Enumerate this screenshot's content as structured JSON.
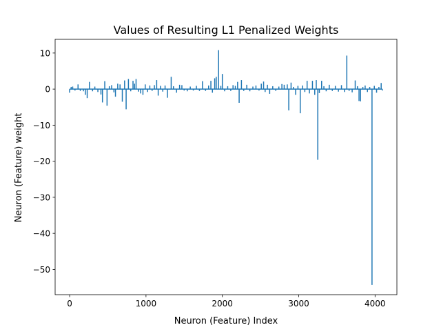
{
  "chart_data": {
    "type": "line",
    "title": "Values of Resulting L1 Penalized Weights",
    "xlabel": "Neuron (Feature) Index",
    "ylabel": "Neuron (Feature) weight",
    "xlim": [
      -190,
      4286
    ],
    "ylim": [
      -57.0,
      13.8
    ],
    "xticks": [
      0,
      1000,
      2000,
      3000,
      4000
    ],
    "xtick_labels": [
      "0",
      "1000",
      "2000",
      "3000",
      "4000"
    ],
    "yticks": [
      10,
      0,
      -10,
      -20,
      -30,
      -40,
      -50
    ],
    "ytick_labels": [
      "10",
      "0",
      "−10",
      "−20",
      "−30",
      "−40",
      "−50"
    ],
    "grid": false,
    "line_color": "#1f77b4",
    "series": [
      {
        "n_points": 4096,
        "x_start": 0,
        "baseline": 0,
        "spikes": [
          [
            0,
            -1.0
          ],
          [
            20,
            0.6
          ],
          [
            40,
            0.7
          ],
          [
            70,
            -0.4
          ],
          [
            110,
            1.3
          ],
          [
            140,
            -0.5
          ],
          [
            180,
            -0.6
          ],
          [
            205,
            -1.6
          ],
          [
            230,
            -2.5
          ],
          [
            260,
            2.0
          ],
          [
            300,
            -0.6
          ],
          [
            330,
            0.7
          ],
          [
            370,
            -0.8
          ],
          [
            410,
            -1.5
          ],
          [
            430,
            -3.7
          ],
          [
            460,
            2.2
          ],
          [
            490,
            -4.6
          ],
          [
            520,
            0.8
          ],
          [
            550,
            1.1
          ],
          [
            580,
            -0.9
          ],
          [
            600,
            -2.1
          ],
          [
            630,
            1.5
          ],
          [
            660,
            1.3
          ],
          [
            690,
            -3.5
          ],
          [
            720,
            2.4
          ],
          [
            740,
            -5.6
          ],
          [
            770,
            2.8
          ],
          [
            800,
            -0.6
          ],
          [
            830,
            2.3
          ],
          [
            850,
            1.5
          ],
          [
            870,
            2.8
          ],
          [
            900,
            -0.7
          ],
          [
            930,
            -1.2
          ],
          [
            960,
            -1.6
          ],
          [
            990,
            1.3
          ],
          [
            1020,
            -0.8
          ],
          [
            1050,
            1.0
          ],
          [
            1080,
            -0.5
          ],
          [
            1110,
            1.1
          ],
          [
            1140,
            2.5
          ],
          [
            1160,
            -1.8
          ],
          [
            1190,
            0.9
          ],
          [
            1220,
            -0.7
          ],
          [
            1250,
            1.0
          ],
          [
            1280,
            -2.4
          ],
          [
            1330,
            3.4
          ],
          [
            1360,
            0.8
          ],
          [
            1400,
            -1.0
          ],
          [
            1440,
            1.2
          ],
          [
            1470,
            1.1
          ],
          [
            1500,
            -0.4
          ],
          [
            1540,
            -0.6
          ],
          [
            1580,
            0.7
          ],
          [
            1620,
            -0.4
          ],
          [
            1660,
            0.9
          ],
          [
            1700,
            -0.5
          ],
          [
            1740,
            2.2
          ],
          [
            1780,
            -0.5
          ],
          [
            1820,
            1.0
          ],
          [
            1850,
            2.3
          ],
          [
            1870,
            -1.0
          ],
          [
            1900,
            3.0
          ],
          [
            1920,
            3.4
          ],
          [
            1950,
            10.8
          ],
          [
            1980,
            0.9
          ],
          [
            2000,
            4.2
          ],
          [
            2030,
            -0.6
          ],
          [
            2070,
            0.8
          ],
          [
            2110,
            -0.5
          ],
          [
            2140,
            1.1
          ],
          [
            2170,
            0.9
          ],
          [
            2200,
            2.0
          ],
          [
            2220,
            -3.8
          ],
          [
            2250,
            2.5
          ],
          [
            2280,
            -0.5
          ],
          [
            2320,
            1.2
          ],
          [
            2360,
            -0.6
          ],
          [
            2400,
            0.7
          ],
          [
            2440,
            1.0
          ],
          [
            2480,
            -0.4
          ],
          [
            2510,
            1.5
          ],
          [
            2540,
            2.1
          ],
          [
            2560,
            -0.8
          ],
          [
            2590,
            1.2
          ],
          [
            2620,
            -1.3
          ],
          [
            2660,
            0.8
          ],
          [
            2700,
            -0.5
          ],
          [
            2740,
            0.7
          ],
          [
            2780,
            1.4
          ],
          [
            2810,
            1.2
          ],
          [
            2850,
            1.3
          ],
          [
            2870,
            -5.9
          ],
          [
            2900,
            1.8
          ],
          [
            2930,
            0.6
          ],
          [
            2960,
            -1.6
          ],
          [
            2990,
            0.9
          ],
          [
            3020,
            -6.7
          ],
          [
            3050,
            1.0
          ],
          [
            3080,
            -0.8
          ],
          [
            3110,
            2.3
          ],
          [
            3140,
            -1.2
          ],
          [
            3180,
            2.3
          ],
          [
            3210,
            -1.6
          ],
          [
            3230,
            2.5
          ],
          [
            3250,
            -19.6
          ],
          [
            3270,
            -1.1
          ],
          [
            3300,
            2.3
          ],
          [
            3330,
            0.8
          ],
          [
            3360,
            -0.6
          ],
          [
            3400,
            1.2
          ],
          [
            3440,
            -0.5
          ],
          [
            3480,
            0.9
          ],
          [
            3520,
            -0.7
          ],
          [
            3560,
            1.1
          ],
          [
            3600,
            -0.8
          ],
          [
            3630,
            9.3
          ],
          [
            3660,
            -0.5
          ],
          [
            3700,
            -0.9
          ],
          [
            3740,
            2.4
          ],
          [
            3770,
            0.8
          ],
          [
            3790,
            -3.3
          ],
          [
            3810,
            -3.4
          ],
          [
            3840,
            0.6
          ],
          [
            3870,
            1.0
          ],
          [
            3900,
            -0.8
          ],
          [
            3930,
            0.6
          ],
          [
            3960,
            -54.3
          ],
          [
            3990,
            0.9
          ],
          [
            4020,
            -1.0
          ],
          [
            4050,
            0.6
          ],
          [
            4080,
            1.7
          ],
          [
            4095,
            -0.4
          ]
        ]
      }
    ]
  }
}
